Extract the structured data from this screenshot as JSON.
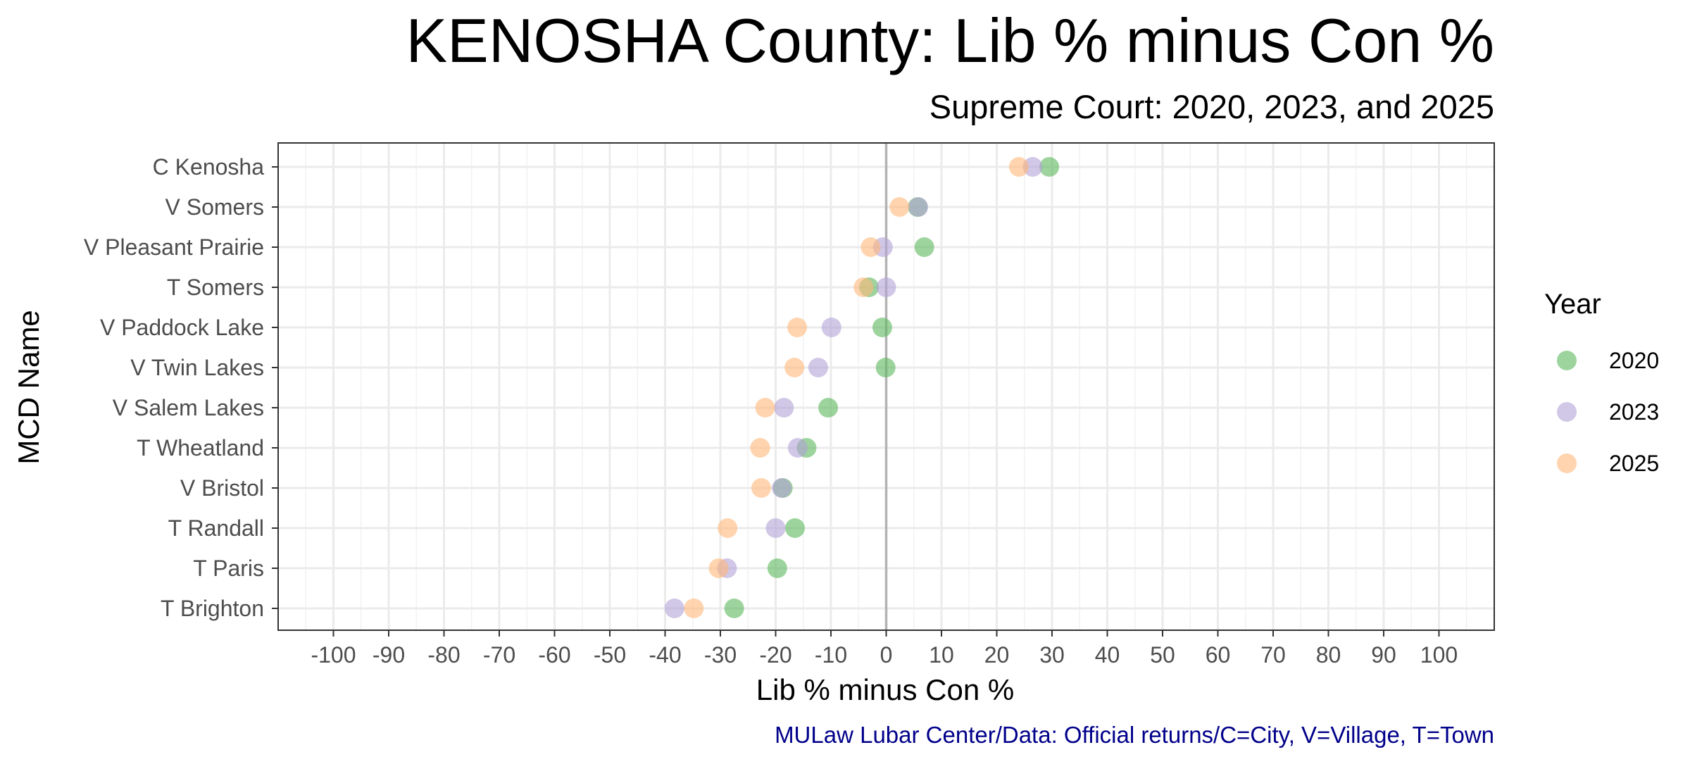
{
  "chart_data": {
    "type": "scatter",
    "title": "KENOSHA County: Lib % minus Con %",
    "subtitle": "Supreme Court: 2020, 2023, and 2025",
    "xlabel": "Lib % minus Con %",
    "ylabel": "MCD Name",
    "caption": "MULaw Lubar Center/Data: Official returns/C=City, V=Village, T=Town",
    "xlim": [
      -110,
      110
    ],
    "x_ticks": [
      -100,
      -90,
      -80,
      -70,
      -60,
      -50,
      -40,
      -30,
      -20,
      -10,
      0,
      10,
      20,
      30,
      40,
      50,
      60,
      70,
      80,
      90,
      100
    ],
    "x_tick_labels": [
      "-100",
      "-90",
      "-80",
      "-70",
      "-60",
      "-50",
      "-40",
      "-30",
      "-20",
      "-10",
      "0",
      "10",
      "20",
      "30",
      "40",
      "50",
      "60",
      "70",
      "80",
      "90",
      "100"
    ],
    "grid": true,
    "reference_line_x": 0,
    "legend": {
      "title": "Year",
      "placement": "right"
    },
    "categories": [
      "C Kenosha",
      "V Somers",
      "V Pleasant Prairie",
      "T Somers",
      "V Paddock Lake",
      "V Twin Lakes",
      "V Salem Lakes",
      "T Wheatland",
      "V Bristol",
      "T Randall",
      "T Paris",
      "T Brighton"
    ],
    "series": [
      {
        "name": "2020",
        "color": "#5cb85c",
        "values": [
          29.5,
          5.7,
          6.9,
          -3.1,
          -0.7,
          -0.1,
          -10.5,
          -14.4,
          -18.7,
          -16.5,
          -19.7,
          -27.5
        ]
      },
      {
        "name": "2023",
        "color": "#b3a2d6",
        "values": [
          26.5,
          5.8,
          -0.6,
          0.0,
          -9.9,
          -12.3,
          -18.5,
          -16.0,
          -18.9,
          -20.0,
          -28.8,
          -38.3
        ]
      },
      {
        "name": "2025",
        "color": "#ffb87a",
        "values": [
          24.0,
          2.4,
          -2.8,
          -4.1,
          -16.1,
          -16.6,
          -21.9,
          -22.8,
          -22.6,
          -28.7,
          -30.3,
          -34.8
        ]
      }
    ]
  }
}
